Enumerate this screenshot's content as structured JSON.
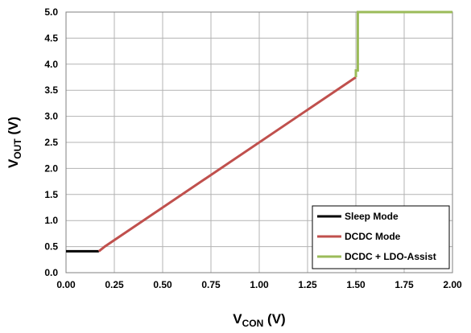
{
  "chart_data": {
    "type": "line",
    "title": "",
    "xlabel_main": "V",
    "xlabel_sub": "CON",
    "xlabel_unit": " (V)",
    "ylabel_main": "V",
    "ylabel_sub": "OUT",
    "ylabel_unit": " (V)",
    "xlim": [
      0.0,
      2.0
    ],
    "ylim": [
      0.0,
      5.0
    ],
    "x_ticks": [
      0.0,
      0.25,
      0.5,
      0.75,
      1.0,
      1.25,
      1.5,
      1.75,
      2.0
    ],
    "x_tick_labels": [
      "0.00",
      "0.25",
      "0.50",
      "0.75",
      "1.00",
      "1.25",
      "1.50",
      "1.75",
      "2.00"
    ],
    "y_ticks": [
      0.0,
      0.5,
      1.0,
      1.5,
      2.0,
      2.5,
      3.0,
      3.5,
      4.0,
      4.5,
      5.0
    ],
    "y_tick_labels": [
      "0.0",
      "0.5",
      "1.0",
      "1.5",
      "2.0",
      "2.5",
      "3.0",
      "3.5",
      "4.0",
      "4.5",
      "5.0"
    ],
    "grid": true,
    "legend_position": "bottom-right",
    "series": [
      {
        "name": "Sleep Mode",
        "color": "#000000",
        "x": [
          0.0,
          0.17
        ],
        "y": [
          0.41,
          0.41
        ]
      },
      {
        "name": "DCDC Mode",
        "color": "#c0504d",
        "x": [
          0.17,
          0.2,
          1.5
        ],
        "y": [
          0.41,
          0.5,
          3.75
        ]
      },
      {
        "name": "DCDC + LDO-Assist",
        "color": "#9bbb59",
        "x": [
          1.5,
          1.5,
          1.51,
          1.51,
          2.0
        ],
        "y": [
          3.75,
          3.88,
          3.88,
          5.0,
          5.0
        ]
      }
    ]
  }
}
